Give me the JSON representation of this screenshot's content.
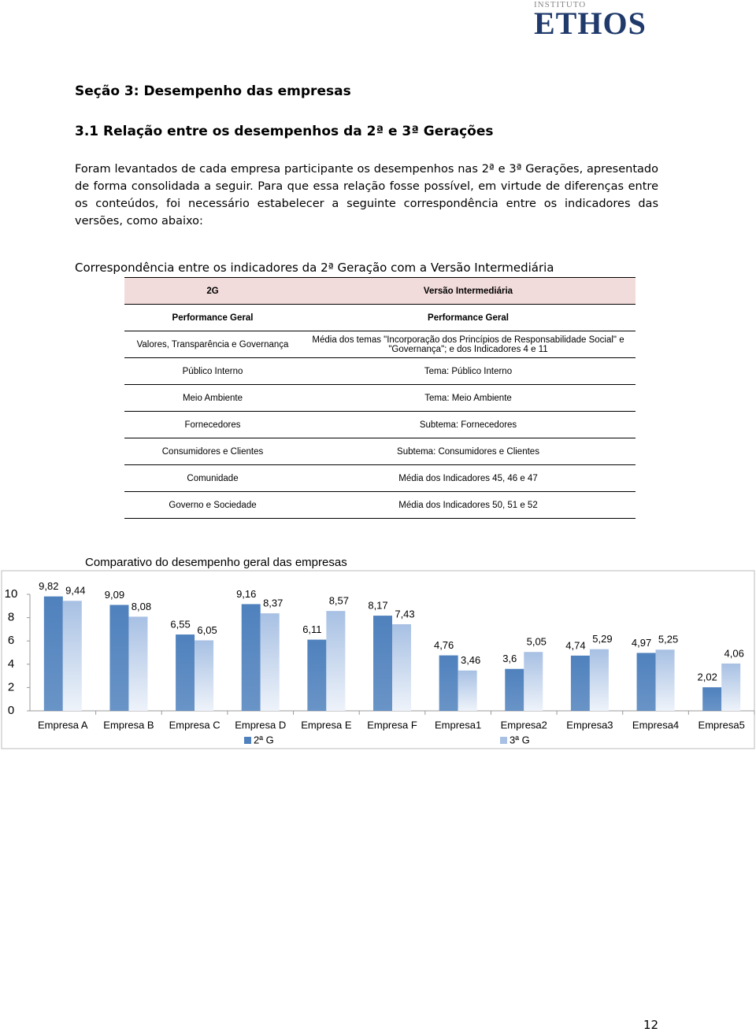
{
  "logo": {
    "top": "INSTITUTO",
    "name": "ETHOS"
  },
  "section_title": "Seção 3: Desempenho das empresas",
  "subsection_title": "3.1 Relação entre os desempenhos da 2ª e 3ª Gerações",
  "paragraph": "Foram levantados de cada empresa participante os desempenhos nas 2ª e 3ª Gerações, apresentado de forma consolidada a seguir. Para que essa relação fosse possível, em virtude de diferenças entre os conteúdos, foi necessário estabelecer a seguinte correspondência entre os indicadores das versões, como abaixo:",
  "table": {
    "caption": "Correspondência entre os indicadores da 2ª Geração com a Versão Intermediária",
    "header": [
      "2G",
      "Versão Intermediária"
    ],
    "rows": [
      [
        "Performance Geral",
        "Performance Geral"
      ],
      [
        "Valores, Transparência e Governança",
        "Média dos temas \"Incorporação dos Princípios de Responsabilidade Social\" e \"Governança\"; e dos Indicadores 4 e 11"
      ],
      [
        "Público Interno",
        "Tema: Público Interno"
      ],
      [
        "Meio Ambiente",
        "Tema: Meio Ambiente"
      ],
      [
        "Fornecedores",
        "Subtema: Fornecedores"
      ],
      [
        "Consumidores e Clientes",
        "Subtema: Consumidores e Clientes"
      ],
      [
        "Comunidade",
        "Média dos Indicadores 45, 46 e 47"
      ],
      [
        "Governo e Sociedade",
        "Média dos Indicadores 50, 51 e 52"
      ]
    ]
  },
  "chart_data": {
    "type": "bar",
    "title": "Comparativo do desempenho geral das empresas",
    "categories": [
      "Empresa A",
      "Empresa B",
      "Empresa C",
      "Empresa D",
      "Empresa E",
      "Empresa F",
      "Empresa1",
      "Empresa2",
      "Empresa3",
      "Empresa4",
      "Empresa5"
    ],
    "series": [
      {
        "name": "2ª G",
        "color": "#4f81bd",
        "values": [
          9.82,
          9.09,
          6.55,
          9.16,
          6.11,
          8.17,
          4.76,
          3.6,
          4.74,
          4.97,
          2.02
        ],
        "value_labels": [
          "9,82",
          "9,09",
          "6,55",
          "9,16",
          "6,11",
          "8,17",
          "4,76",
          "3,6",
          "4,74",
          "4,97",
          "2,02"
        ]
      },
      {
        "name": "3ª G",
        "color": "#a7c0e3",
        "values": [
          9.44,
          8.08,
          6.05,
          8.37,
          8.57,
          7.43,
          3.46,
          5.05,
          5.29,
          5.25,
          4.06
        ],
        "value_labels": [
          "9,44",
          "8,08",
          "6,05",
          "8,37",
          "8,57",
          "7,43",
          "3,46",
          "5,05",
          "5,29",
          "5,25",
          "4,06"
        ]
      }
    ],
    "ylim": [
      0,
      10
    ],
    "yticks": [
      0,
      2,
      4,
      6,
      8,
      10
    ]
  },
  "page_number": "12"
}
